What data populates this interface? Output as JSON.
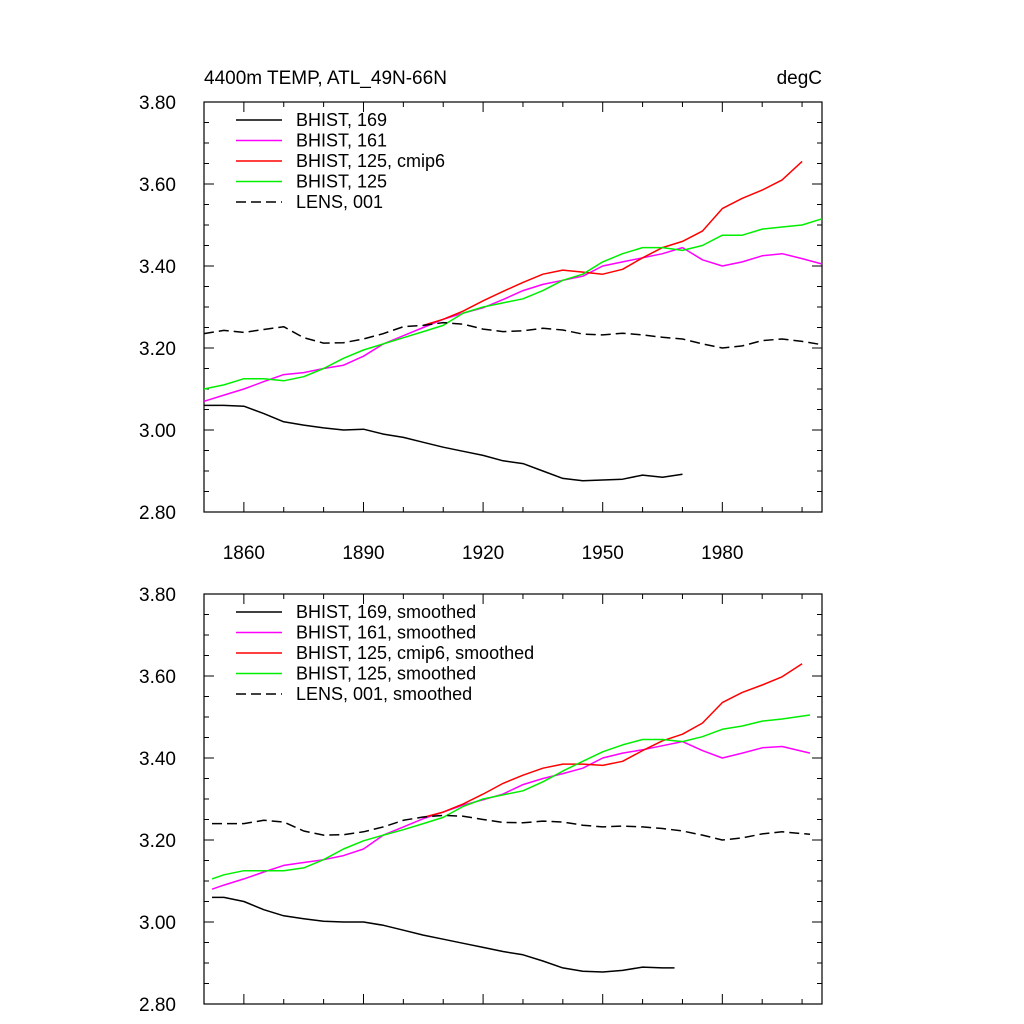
{
  "chart_data": [
    {
      "type": "line",
      "title_left": "4400m TEMP, ATL_49N-66N",
      "title_right": "degC",
      "xlim": [
        1850,
        2005
      ],
      "ylim": [
        2.8,
        3.8
      ],
      "x_ticks": [
        1860,
        1890,
        1920,
        1950,
        1980
      ],
      "y_ticks": [
        "2.80",
        "3.00",
        "3.20",
        "3.40",
        "3.60",
        "3.80"
      ],
      "show_x_tick_labels": true,
      "legend_position": "top-left",
      "legend": [
        {
          "label": "BHIST, 169",
          "color": "#000000",
          "dash": "solid"
        },
        {
          "label": "BHIST, 161",
          "color": "#ff00ff",
          "dash": "solid"
        },
        {
          "label": "BHIST, 125, cmip6",
          "color": "#ff0000",
          "dash": "solid"
        },
        {
          "label": "BHIST, 125",
          "color": "#00ee00",
          "dash": "solid"
        },
        {
          "label": "LENS, 001",
          "color": "#000000",
          "dash": "dashed"
        }
      ],
      "series": [
        {
          "name": "BHIST, 169",
          "color": "#000000",
          "dash": "solid",
          "x": [
            1850,
            1855,
            1860,
            1865,
            1870,
            1875,
            1880,
            1885,
            1890,
            1895,
            1900,
            1905,
            1910,
            1915,
            1920,
            1925,
            1930,
            1935,
            1940,
            1945,
            1950,
            1955,
            1960,
            1965,
            1970
          ],
          "y": [
            3.06,
            3.06,
            3.058,
            3.04,
            3.02,
            3.012,
            3.005,
            3.0,
            3.002,
            2.99,
            2.982,
            2.97,
            2.958,
            2.948,
            2.938,
            2.925,
            2.918,
            2.9,
            2.882,
            2.876,
            2.878,
            2.88,
            2.89,
            2.885,
            2.892
          ]
        },
        {
          "name": "BHIST, 161",
          "color": "#ff00ff",
          "dash": "solid",
          "x": [
            1850,
            1855,
            1860,
            1865,
            1870,
            1875,
            1880,
            1885,
            1890,
            1895,
            1900,
            1905,
            1910,
            1915,
            1920,
            1925,
            1930,
            1935,
            1940,
            1945,
            1950,
            1955,
            1960,
            1965,
            1970,
            1975,
            1980,
            1985,
            1990,
            1995,
            2000,
            2005
          ],
          "y": [
            3.07,
            3.085,
            3.1,
            3.118,
            3.135,
            3.14,
            3.15,
            3.158,
            3.18,
            3.21,
            3.23,
            3.25,
            3.27,
            3.285,
            3.298,
            3.318,
            3.34,
            3.355,
            3.365,
            3.375,
            3.4,
            3.41,
            3.42,
            3.43,
            3.445,
            3.415,
            3.4,
            3.41,
            3.425,
            3.43,
            3.418,
            3.405
          ]
        },
        {
          "name": "BHIST, 125, cmip6",
          "color": "#ff0000",
          "dash": "solid",
          "x": [
            1905,
            1910,
            1915,
            1920,
            1925,
            1930,
            1935,
            1940,
            1945,
            1950,
            1955,
            1960,
            1965,
            1970,
            1975,
            1980,
            1985,
            1990,
            1995,
            2000
          ],
          "y": [
            3.255,
            3.27,
            3.29,
            3.315,
            3.338,
            3.36,
            3.38,
            3.39,
            3.385,
            3.38,
            3.392,
            3.42,
            3.445,
            3.46,
            3.485,
            3.54,
            3.565,
            3.585,
            3.61,
            3.655
          ]
        },
        {
          "name": "BHIST, 125",
          "color": "#00ee00",
          "dash": "solid",
          "x": [
            1850,
            1855,
            1860,
            1865,
            1870,
            1875,
            1880,
            1885,
            1890,
            1895,
            1900,
            1905,
            1910,
            1915,
            1920,
            1925,
            1930,
            1935,
            1940,
            1945,
            1950,
            1955,
            1960,
            1965,
            1970,
            1975,
            1980,
            1985,
            1990,
            1995,
            2000,
            2005
          ],
          "y": [
            3.1,
            3.11,
            3.125,
            3.125,
            3.12,
            3.13,
            3.15,
            3.175,
            3.195,
            3.21,
            3.225,
            3.24,
            3.255,
            3.285,
            3.3,
            3.31,
            3.32,
            3.34,
            3.365,
            3.38,
            3.41,
            3.43,
            3.445,
            3.445,
            3.438,
            3.45,
            3.475,
            3.475,
            3.49,
            3.495,
            3.5,
            3.515
          ]
        },
        {
          "name": "LENS, 001",
          "color": "#000000",
          "dash": "dashed",
          "x": [
            1850,
            1855,
            1860,
            1865,
            1870,
            1875,
            1880,
            1885,
            1890,
            1895,
            1900,
            1905,
            1910,
            1915,
            1920,
            1925,
            1930,
            1935,
            1940,
            1945,
            1950,
            1955,
            1960,
            1965,
            1970,
            1975,
            1980,
            1985,
            1990,
            1995,
            2000,
            2005
          ],
          "y": [
            3.235,
            3.243,
            3.238,
            3.245,
            3.252,
            3.225,
            3.212,
            3.213,
            3.222,
            3.235,
            3.252,
            3.255,
            3.262,
            3.258,
            3.246,
            3.24,
            3.242,
            3.248,
            3.244,
            3.234,
            3.232,
            3.236,
            3.232,
            3.226,
            3.222,
            3.21,
            3.2,
            3.205,
            3.218,
            3.222,
            3.216,
            3.208
          ]
        }
      ]
    },
    {
      "type": "line",
      "xlim": [
        1850,
        2005
      ],
      "ylim": [
        2.8,
        3.8
      ],
      "x_ticks": [
        1860,
        1890,
        1920,
        1950,
        1980
      ],
      "y_ticks": [
        "2.80",
        "3.00",
        "3.20",
        "3.40",
        "3.60",
        "3.80"
      ],
      "show_x_tick_labels": false,
      "legend_position": "top-left",
      "legend": [
        {
          "label": "BHIST, 169, smoothed",
          "color": "#000000",
          "dash": "solid"
        },
        {
          "label": "BHIST, 161, smoothed",
          "color": "#ff00ff",
          "dash": "solid"
        },
        {
          "label": "BHIST, 125, cmip6, smoothed",
          "color": "#ff0000",
          "dash": "solid"
        },
        {
          "label": "BHIST, 125, smoothed",
          "color": "#00ee00",
          "dash": "solid"
        },
        {
          "label": "LENS, 001, smoothed",
          "color": "#000000",
          "dash": "dashed"
        }
      ],
      "series": [
        {
          "name": "BHIST, 169, smoothed",
          "color": "#000000",
          "dash": "solid",
          "x": [
            1852,
            1855,
            1860,
            1865,
            1870,
            1875,
            1880,
            1885,
            1890,
            1895,
            1900,
            1905,
            1910,
            1915,
            1920,
            1925,
            1930,
            1935,
            1940,
            1945,
            1950,
            1955,
            1960,
            1965,
            1968
          ],
          "y": [
            3.06,
            3.06,
            3.05,
            3.03,
            3.015,
            3.008,
            3.002,
            3.0,
            3.0,
            2.992,
            2.98,
            2.968,
            2.958,
            2.948,
            2.938,
            2.928,
            2.92,
            2.905,
            2.888,
            2.88,
            2.878,
            2.882,
            2.89,
            2.888,
            2.888
          ]
        },
        {
          "name": "BHIST, 161, smoothed",
          "color": "#ff00ff",
          "dash": "solid",
          "x": [
            1852,
            1855,
            1860,
            1865,
            1870,
            1875,
            1880,
            1885,
            1890,
            1895,
            1900,
            1905,
            1910,
            1915,
            1920,
            1925,
            1930,
            1935,
            1940,
            1945,
            1950,
            1955,
            1960,
            1965,
            1970,
            1975,
            1980,
            1985,
            1990,
            1995,
            2002
          ],
          "y": [
            3.08,
            3.09,
            3.105,
            3.122,
            3.138,
            3.145,
            3.152,
            3.162,
            3.178,
            3.212,
            3.232,
            3.252,
            3.268,
            3.285,
            3.298,
            3.312,
            3.335,
            3.35,
            3.362,
            3.375,
            3.4,
            3.412,
            3.42,
            3.43,
            3.44,
            3.418,
            3.4,
            3.412,
            3.425,
            3.428,
            3.412
          ]
        },
        {
          "name": "BHIST, 125, cmip6, smoothed",
          "color": "#ff0000",
          "dash": "solid",
          "x": [
            1905,
            1910,
            1915,
            1920,
            1925,
            1930,
            1935,
            1940,
            1945,
            1950,
            1955,
            1960,
            1965,
            1970,
            1975,
            1980,
            1985,
            1990,
            1995,
            2000
          ],
          "y": [
            3.255,
            3.268,
            3.288,
            3.312,
            3.338,
            3.358,
            3.375,
            3.385,
            3.385,
            3.382,
            3.392,
            3.418,
            3.442,
            3.458,
            3.485,
            3.535,
            3.56,
            3.578,
            3.598,
            3.63
          ]
        },
        {
          "name": "BHIST, 125, smoothed",
          "color": "#00ee00",
          "dash": "solid",
          "x": [
            1852,
            1855,
            1860,
            1865,
            1870,
            1875,
            1880,
            1885,
            1890,
            1895,
            1900,
            1905,
            1910,
            1915,
            1920,
            1925,
            1930,
            1935,
            1940,
            1945,
            1950,
            1955,
            1960,
            1965,
            1970,
            1975,
            1980,
            1985,
            1990,
            1995,
            2002
          ],
          "y": [
            3.105,
            3.115,
            3.125,
            3.125,
            3.125,
            3.132,
            3.152,
            3.178,
            3.198,
            3.212,
            3.225,
            3.24,
            3.255,
            3.282,
            3.3,
            3.31,
            3.32,
            3.342,
            3.368,
            3.392,
            3.415,
            3.432,
            3.445,
            3.445,
            3.44,
            3.452,
            3.47,
            3.478,
            3.49,
            3.495,
            3.505
          ]
        },
        {
          "name": "LENS, 001, smoothed",
          "color": "#000000",
          "dash": "dashed",
          "x": [
            1852,
            1855,
            1860,
            1865,
            1870,
            1875,
            1880,
            1885,
            1890,
            1895,
            1900,
            1905,
            1910,
            1915,
            1920,
            1925,
            1930,
            1935,
            1940,
            1945,
            1950,
            1955,
            1960,
            1965,
            1970,
            1975,
            1980,
            1985,
            1990,
            1995,
            2002
          ],
          "y": [
            3.24,
            3.24,
            3.24,
            3.248,
            3.244,
            3.222,
            3.212,
            3.213,
            3.22,
            3.232,
            3.248,
            3.256,
            3.26,
            3.258,
            3.25,
            3.243,
            3.242,
            3.246,
            3.244,
            3.236,
            3.232,
            3.234,
            3.232,
            3.228,
            3.222,
            3.212,
            3.2,
            3.205,
            3.215,
            3.22,
            3.214
          ]
        }
      ]
    }
  ]
}
